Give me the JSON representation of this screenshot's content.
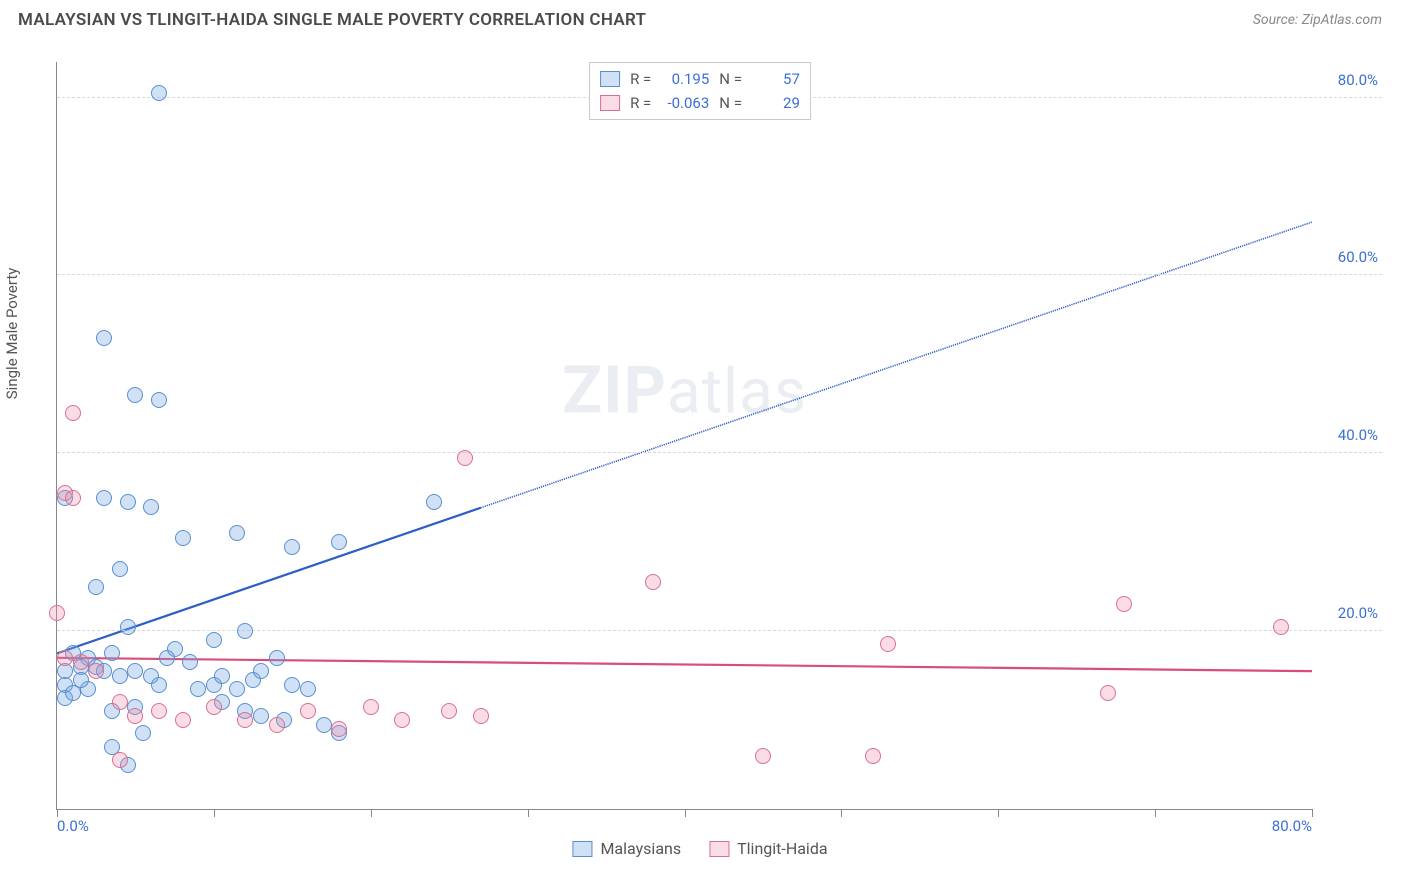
{
  "header": {
    "title": "MALAYSIAN VS TLINGIT-HAIDA SINGLE MALE POVERTY CORRELATION CHART",
    "source_prefix": "Source: ",
    "source_name": "ZipAtlas.com"
  },
  "chart": {
    "type": "scatter",
    "ylabel": "Single Male Poverty",
    "watermark_bold": "ZIP",
    "watermark_rest": "atlas",
    "background_color": "#ffffff",
    "grid_color": "#d8d8d8",
    "axis_color": "#888888",
    "xlim": [
      0,
      80
    ],
    "ylim": [
      0,
      84
    ],
    "x_ticks": [
      0,
      10,
      20,
      30,
      40,
      50,
      60,
      70,
      80
    ],
    "x_tick_labels": {
      "0": "0.0%",
      "80": "80.0%"
    },
    "y_gridlines": [
      20,
      40,
      60,
      80
    ],
    "y_tick_labels": {
      "20": "20.0%",
      "40": "40.0%",
      "60": "60.0%",
      "80": "80.0%"
    },
    "point_radius": 8,
    "point_border_width": 1.2,
    "series": [
      {
        "name": "Malaysians",
        "fill": "rgba(120,170,230,0.35)",
        "stroke": "#5a8fd0",
        "trend_color": "#2f5fc4",
        "r_label": "R =",
        "r_value": "0.195",
        "n_label": "N =",
        "n_value": "57",
        "trend": {
          "y_at_x0": 17.5,
          "y_at_xmax": 66,
          "solid_until_x": 27
        },
        "points": [
          [
            6.5,
            80.5
          ],
          [
            3,
            53
          ],
          [
            5,
            46.5
          ],
          [
            6.5,
            46
          ],
          [
            0.5,
            35
          ],
          [
            3,
            35
          ],
          [
            4.5,
            34.5
          ],
          [
            6,
            34
          ],
          [
            24,
            34.5
          ],
          [
            8,
            30.5
          ],
          [
            11.5,
            31
          ],
          [
            18,
            30
          ],
          [
            15,
            29.5
          ],
          [
            4,
            27
          ],
          [
            2.5,
            25
          ],
          [
            4.5,
            20.5
          ],
          [
            10,
            19
          ],
          [
            12,
            20
          ],
          [
            7.5,
            18
          ],
          [
            1,
            17.5
          ],
          [
            2,
            17
          ],
          [
            3.5,
            17.5
          ],
          [
            1.5,
            16
          ],
          [
            2.5,
            16
          ],
          [
            3,
            15.5
          ],
          [
            4,
            15
          ],
          [
            5,
            15.5
          ],
          [
            6,
            15
          ],
          [
            6.5,
            14
          ],
          [
            7,
            17
          ],
          [
            8.5,
            16.5
          ],
          [
            9,
            13.5
          ],
          [
            10,
            14
          ],
          [
            10.5,
            15
          ],
          [
            11.5,
            13.5
          ],
          [
            12.5,
            14.5
          ],
          [
            13,
            15.5
          ],
          [
            14,
            17
          ],
          [
            15,
            14
          ],
          [
            16,
            13.5
          ],
          [
            10.5,
            12
          ],
          [
            12,
            11
          ],
          [
            13,
            10.5
          ],
          [
            14.5,
            10
          ],
          [
            17,
            9.5
          ],
          [
            18,
            8.5
          ],
          [
            0.5,
            14
          ],
          [
            0.5,
            12.5
          ],
          [
            1,
            13
          ],
          [
            2,
            13.5
          ],
          [
            3.5,
            11
          ],
          [
            5,
            11.5
          ],
          [
            5.5,
            8.5
          ],
          [
            3.5,
            7
          ],
          [
            4.5,
            5
          ],
          [
            0.5,
            15.5
          ],
          [
            1.5,
            14.5
          ]
        ]
      },
      {
        "name": "Tlingit-Haida",
        "fill": "rgba(235,140,170,0.30)",
        "stroke": "#d9708f",
        "trend_color": "#d94d7a",
        "r_label": "R =",
        "r_value": "-0.063",
        "n_label": "N =",
        "n_value": "29",
        "trend": {
          "y_at_x0": 17,
          "y_at_xmax": 15.5,
          "solid_until_x": 80
        },
        "points": [
          [
            1,
            44.5
          ],
          [
            26,
            39.5
          ],
          [
            0.5,
            35.5
          ],
          [
            1,
            35
          ],
          [
            0,
            22
          ],
          [
            38,
            25.5
          ],
          [
            68,
            23
          ],
          [
            78,
            20.5
          ],
          [
            53,
            18.5
          ],
          [
            67,
            13
          ],
          [
            0.5,
            17
          ],
          [
            1.5,
            16.5
          ],
          [
            2.5,
            15.5
          ],
          [
            4,
            12
          ],
          [
            5,
            10.5
          ],
          [
            6.5,
            11
          ],
          [
            8,
            10
          ],
          [
            10,
            11.5
          ],
          [
            12,
            10
          ],
          [
            14,
            9.5
          ],
          [
            16,
            11
          ],
          [
            18,
            9
          ],
          [
            20,
            11.5
          ],
          [
            22,
            10
          ],
          [
            25,
            11
          ],
          [
            27,
            10.5
          ],
          [
            45,
            6
          ],
          [
            52,
            6
          ],
          [
            4,
            5.5
          ]
        ]
      }
    ],
    "legend": {
      "series1_label": "Malaysians",
      "series2_label": "Tlingit-Haida"
    }
  }
}
